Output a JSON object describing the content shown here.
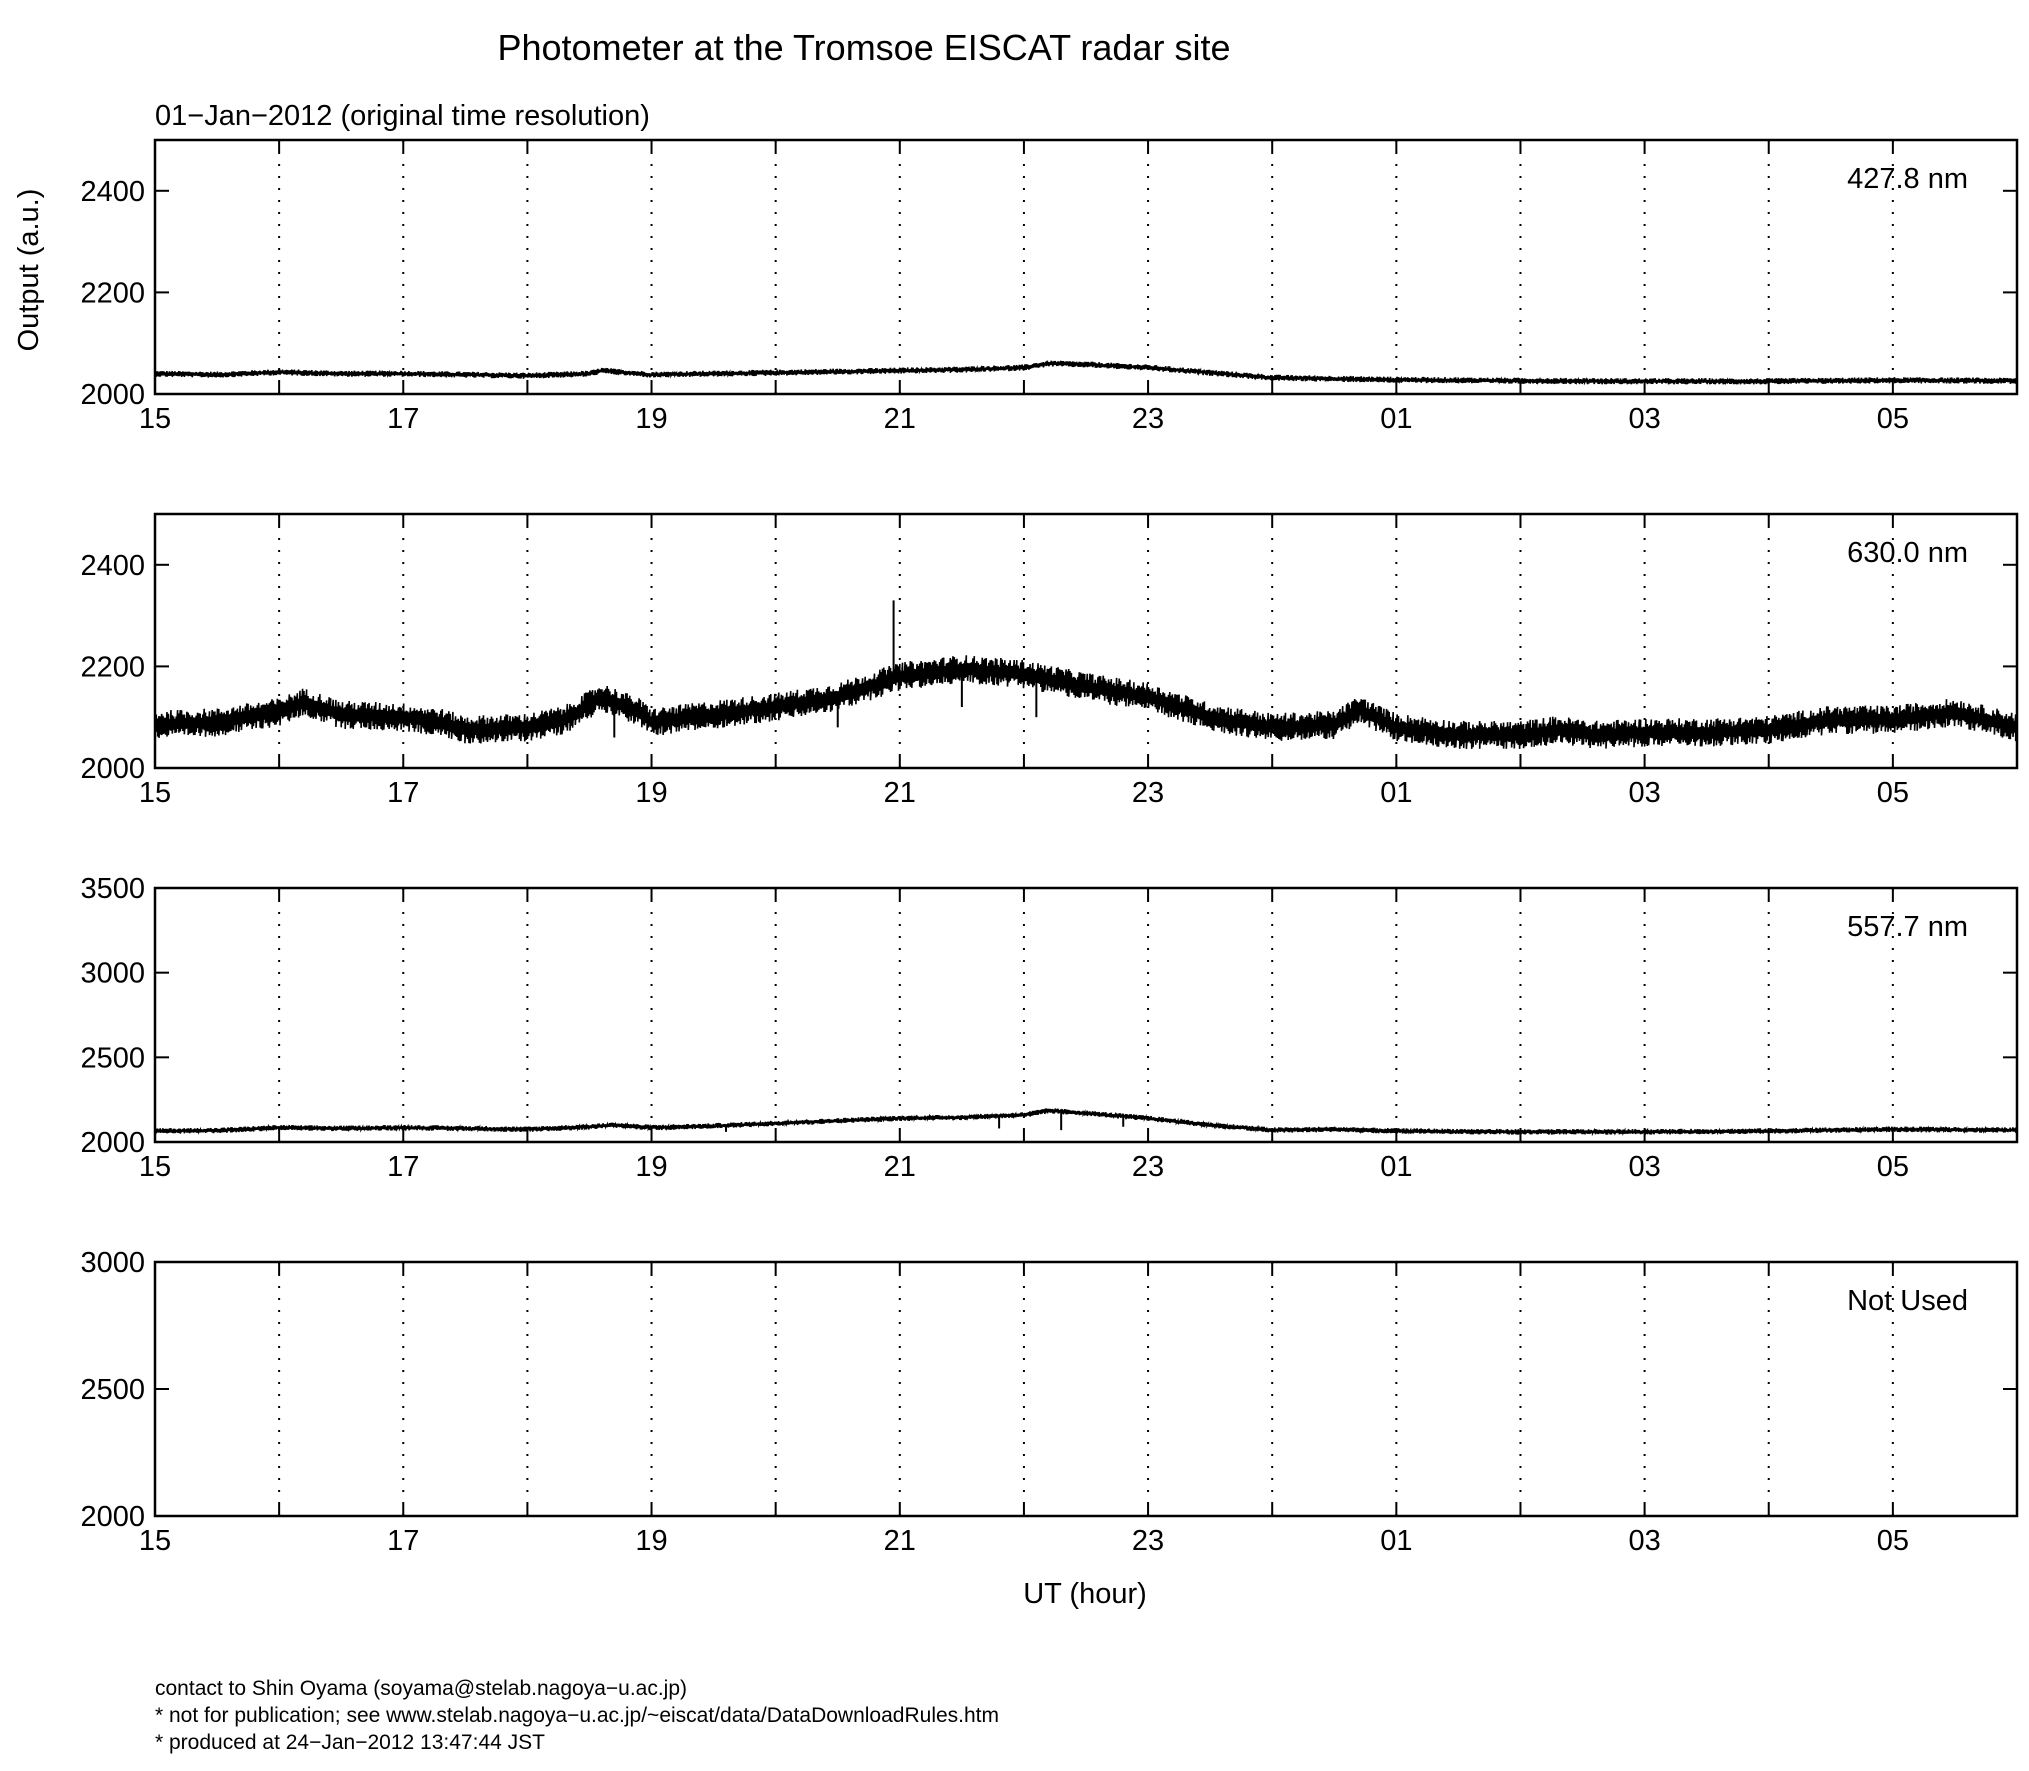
{
  "chart_data": {
    "type": "line",
    "title": "Photometer at the Tromsoe EISCAT radar site",
    "subtitle": "01−Jan−2012 (original time resolution)",
    "ylabel": "Output (a.u.)",
    "xlabel": "UT (hour)",
    "x_ticks": [
      "15",
      "17",
      "19",
      "21",
      "23",
      "01",
      "03",
      "05"
    ],
    "xlim": [
      15,
      30
    ],
    "grid": "dotted vertical lines at every hour",
    "line_color": "#000000",
    "panels": [
      {
        "label": "427.8 nm",
        "ylim": [
          2000,
          2500
        ],
        "yticks": [
          "2000",
          "2200",
          "2400"
        ],
        "ytick_values": [
          2000,
          2200,
          2400
        ],
        "series": [
          {
            "x": [
              15,
              15.5,
              16,
              16.5,
              17,
              17.5,
              18,
              18.5,
              18.6,
              19,
              19.5,
              20,
              20.5,
              21,
              21.5,
              22,
              22.2,
              22.5,
              23,
              23.5,
              24,
              24.5,
              25,
              26,
              27,
              28,
              29,
              30
            ],
            "y": [
              2040,
              2038,
              2043,
              2040,
              2040,
              2038,
              2036,
              2040,
              2046,
              2038,
              2040,
              2042,
              2044,
              2046,
              2048,
              2052,
              2060,
              2058,
              2052,
              2042,
              2032,
              2030,
              2028,
              2026,
              2025,
              2025,
              2027,
              2026
            ],
            "band": 6
          }
        ]
      },
      {
        "label": "630.0 nm",
        "ylim": [
          2000,
          2500
        ],
        "yticks": [
          "2000",
          "2200",
          "2400"
        ],
        "ytick_values": [
          2000,
          2200,
          2400
        ],
        "series": [
          {
            "x": [
              15,
              15.5,
              16,
              16.2,
              16.5,
              17,
              17.3,
              17.5,
              18,
              18.3,
              18.6,
              18.9,
              19,
              19.5,
              20,
              20.5,
              21,
              21.5,
              22,
              22.5,
              23,
              23.5,
              24,
              24.5,
              24.7,
              25,
              25.5,
              26,
              26.3,
              26.6,
              27,
              27.5,
              28,
              28.5,
              29,
              29.5,
              30
            ],
            "y": [
              2085,
              2090,
              2110,
              2130,
              2105,
              2100,
              2090,
              2075,
              2080,
              2095,
              2140,
              2110,
              2090,
              2105,
              2120,
              2140,
              2180,
              2195,
              2185,
              2160,
              2140,
              2100,
              2080,
              2085,
              2115,
              2080,
              2065,
              2065,
              2075,
              2065,
              2070,
              2070,
              2075,
              2095,
              2095,
              2110,
              2080
            ],
            "band": 28,
            "spikes": [
              {
                "x": 20.95,
                "y": 2330
              },
              {
                "x": 21.5,
                "y": 2120
              },
              {
                "x": 22.1,
                "y": 2100
              },
              {
                "x": 20.5,
                "y": 2080
              },
              {
                "x": 18.7,
                "y": 2060
              }
            ]
          }
        ]
      },
      {
        "label": "557.7 nm",
        "ylim": [
          2000,
          3500
        ],
        "yticks": [
          "2000",
          "2500",
          "3000",
          "3500"
        ],
        "ytick_values": [
          2000,
          2500,
          3000,
          3500
        ],
        "series": [
          {
            "x": [
              15,
              15.5,
              16,
              16.5,
              17,
              17.5,
              18,
              18.5,
              18.7,
              19,
              19.5,
              20,
              20.5,
              21,
              21.5,
              22,
              22.2,
              22.5,
              23,
              23.5,
              24,
              24.5,
              25,
              26,
              27,
              28,
              29,
              30
            ],
            "y": [
              2065,
              2068,
              2085,
              2080,
              2085,
              2080,
              2075,
              2090,
              2100,
              2085,
              2095,
              2110,
              2125,
              2140,
              2145,
              2160,
              2185,
              2170,
              2140,
              2100,
              2070,
              2075,
              2065,
              2060,
              2060,
              2065,
              2075,
              2070
            ],
            "band": 16,
            "spikes": [
              {
                "x": 21.8,
                "y": 2080
              },
              {
                "x": 22.3,
                "y": 2070
              },
              {
                "x": 19.6,
                "y": 2060
              },
              {
                "x": 22.8,
                "y": 2090
              }
            ]
          }
        ]
      },
      {
        "label": "Not Used",
        "ylim": [
          2000,
          3000
        ],
        "yticks": [
          "2000",
          "2500",
          "3000"
        ],
        "ytick_values": [
          2000,
          2500,
          3000
        ],
        "series": []
      }
    ]
  },
  "footer": {
    "line1": "contact to Shin Oyama (soyama@stelab.nagoya−u.ac.jp)",
    "line2": "* not for publication; see www.stelab.nagoya−u.ac.jp/~eiscat/data/DataDownloadRules.htm",
    "line3": "* produced at 24−Jan−2012 13:47:44 JST"
  }
}
